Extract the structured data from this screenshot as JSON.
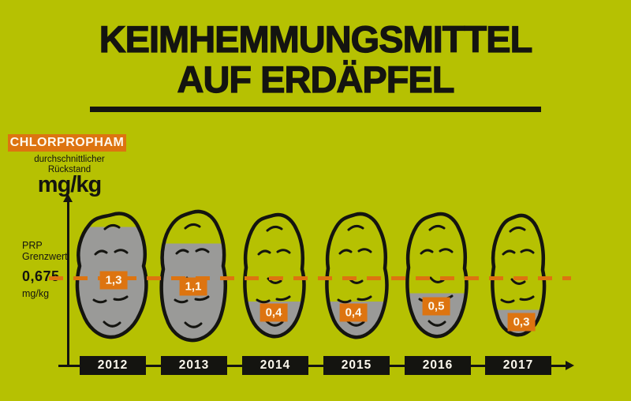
{
  "header": {
    "title_line1": "KEIMHEMMUNGSMITTEL",
    "title_line2": "AUF ERDÄPFEL"
  },
  "legend": {
    "substance": "CHLORPROPHAM",
    "descriptor_line1": "durchschnittlicher",
    "descriptor_line2": "Rückstand",
    "unit": "mg/kg"
  },
  "threshold_labels": {
    "line1": "PRP",
    "line2": "Grenzwert",
    "value": "0,675",
    "unit": "mg/kg"
  },
  "colors": {
    "background": "#b6c102",
    "accent_orange": "#dd7410",
    "fill_gray": "#9a9a98",
    "ink_black": "#141410",
    "text_white": "#fdf9ee"
  },
  "chart_data": {
    "type": "bar",
    "variant": "pictogram-potato-fill",
    "title": "KEIMHEMMUNGSMITTEL AUF ERDÄPFEL",
    "series_name": "Chlorpropham durchschnittlicher Rückstand",
    "unit": "mg/kg",
    "categories": [
      "2012",
      "2013",
      "2014",
      "2015",
      "2016",
      "2017"
    ],
    "values": [
      1.3,
      1.1,
      0.4,
      0.4,
      0.5,
      0.3
    ],
    "value_labels": [
      "1,3",
      "1,1",
      "0,4",
      "0,4",
      "0,5",
      "0,3"
    ],
    "threshold": {
      "name": "PRP Grenzwert",
      "value": 0.675,
      "label": "0,675",
      "unit": "mg/kg"
    },
    "ylim": [
      0,
      1.55
    ],
    "xlabel": "",
    "ylabel": "mg/kg",
    "grid": false,
    "legend_position": "top-left"
  }
}
